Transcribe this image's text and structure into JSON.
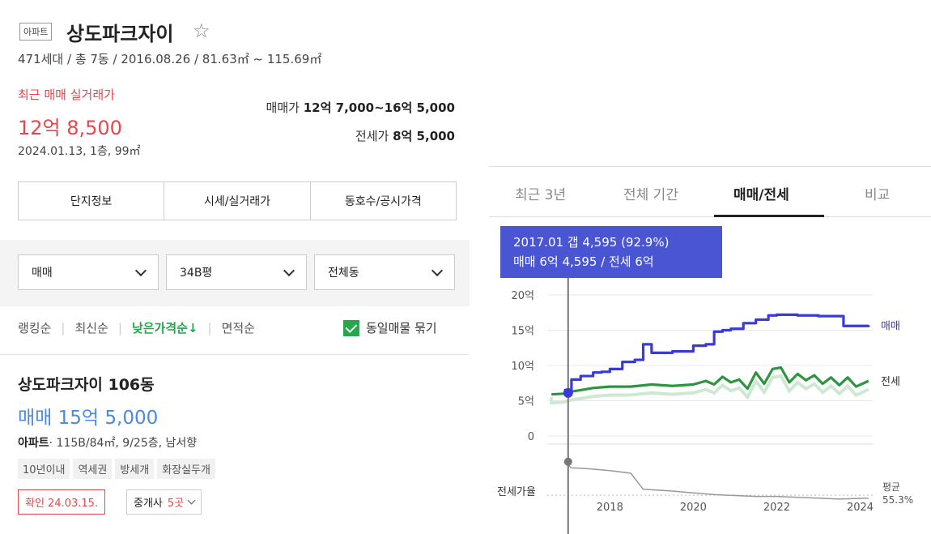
{
  "header": {
    "type_badge": "아파트",
    "name": "상도파크자이",
    "star": "☆",
    "info": "471세대 / 총 7동 / 2016.08.26 / 81.63㎡ ~ 115.69㎡"
  },
  "recent": {
    "label": "최근 매매 실거래가",
    "price": "12억 8,500",
    "date": "2024.01.13, 1층, 99㎡"
  },
  "ranges": {
    "sale_label": "매매가",
    "sale_value": "12억 7,000~16억 5,000",
    "jeonse_label": "전세가",
    "jeonse_value": "8억 5,000"
  },
  "tabs": [
    "단지정보",
    "시세/실거래가",
    "동호수/공시가격"
  ],
  "filters": {
    "trade": "매매",
    "size": "34B평",
    "dong": "전체동"
  },
  "sort": {
    "items": [
      "랭킹순",
      "최신순",
      "낮은가격순↓",
      "면적순"
    ],
    "checkbox_label": "동일매물 묶기"
  },
  "listing": {
    "title": "상도파크자이 106동",
    "price": "매매 15억 5,000",
    "type": "아파트",
    "info": "· 115B/84㎡, 9/25층, 남서향",
    "tags": [
      "10년이내",
      "역세권",
      "방세개",
      "화장실두개"
    ],
    "confirm": "확인 24.03.15.",
    "agent_label": "중개사",
    "agent_count": "5곳"
  },
  "chart_tabs": [
    "최근 3년",
    "전체 기간",
    "매매/전세",
    "비교"
  ],
  "tooltip": {
    "line1": "2017.01  갭 4,595 (92.9%)",
    "line2": "매매 6억 4,595 / 전세 6억"
  },
  "colors": {
    "sale": "#3a3ad8",
    "jeonse": "#2e9440",
    "ratio": "#999999",
    "accent_red": "#e5474c",
    "accent_green": "#23a84a",
    "tooltip_bg": "#4a55d4"
  },
  "chart_data": {
    "type": "line",
    "yticks": [
      "20억",
      "15억",
      "10억",
      "5억",
      "0"
    ],
    "ylim": [
      0,
      20
    ],
    "xticks": [
      "2018",
      "2020",
      "2022",
      "2024"
    ],
    "xlim": [
      2016.5,
      2024.3
    ],
    "series": [
      {
        "name": "매매",
        "x": [
          2016.9,
          2017.08,
          2017.3,
          2017.6,
          2017.8,
          2018.0,
          2018.3,
          2018.6,
          2018.8,
          2019.0,
          2019.5,
          2020.0,
          2020.3,
          2020.5,
          2020.7,
          2020.9,
          2021.2,
          2021.5,
          2021.8,
          2022.0,
          2022.5,
          2023.0,
          2023.4,
          2023.6,
          2024.2
        ],
        "values": [
          6.5,
          8.0,
          8.5,
          9.0,
          9.1,
          9.5,
          10.5,
          10.8,
          13.0,
          11.8,
          12.0,
          12.8,
          13.0,
          14.8,
          15.0,
          15.2,
          16.0,
          16.5,
          17.1,
          17.2,
          17.1,
          17.0,
          17.0,
          15.6,
          15.7
        ]
      },
      {
        "name": "전세",
        "x": [
          2016.6,
          2016.9,
          2017.08,
          2017.3,
          2017.6,
          2018.0,
          2018.5,
          2019.0,
          2019.5,
          2020.0,
          2020.3,
          2020.5,
          2020.7,
          2020.9,
          2021.1,
          2021.3,
          2021.5,
          2021.7,
          2021.9,
          2022.1,
          2022.3,
          2022.5,
          2022.7,
          2022.9,
          2023.1,
          2023.3,
          2023.5,
          2023.7,
          2023.9,
          2024.2
        ],
        "values": [
          5.9,
          6.0,
          6.3,
          6.5,
          6.8,
          7.0,
          7.0,
          7.3,
          7.1,
          7.3,
          7.8,
          7.3,
          8.4,
          7.6,
          8.0,
          6.7,
          9.0,
          7.4,
          9.5,
          9.7,
          7.6,
          8.8,
          7.9,
          8.6,
          7.4,
          8.3,
          7.2,
          8.3,
          7.0,
          7.8
        ]
      },
      {
        "name": "전세가율",
        "x": [
          2016.9,
          2017.08,
          2017.5,
          2018.0,
          2018.5,
          2018.8,
          2019.5,
          2020.0,
          2020.5,
          2021.0,
          2021.5,
          2022.0,
          2022.5,
          2023.0,
          2023.5,
          2024.2
        ],
        "values": [
          92.9,
          86,
          85,
          83,
          80,
          62,
          60,
          58,
          56,
          55,
          54,
          54,
          53,
          52,
          51,
          52
        ]
      }
    ],
    "ratio_label": "전세가율",
    "avg_label": "평균",
    "avg_value": "55.3%",
    "marker_date": 2017.0
  }
}
